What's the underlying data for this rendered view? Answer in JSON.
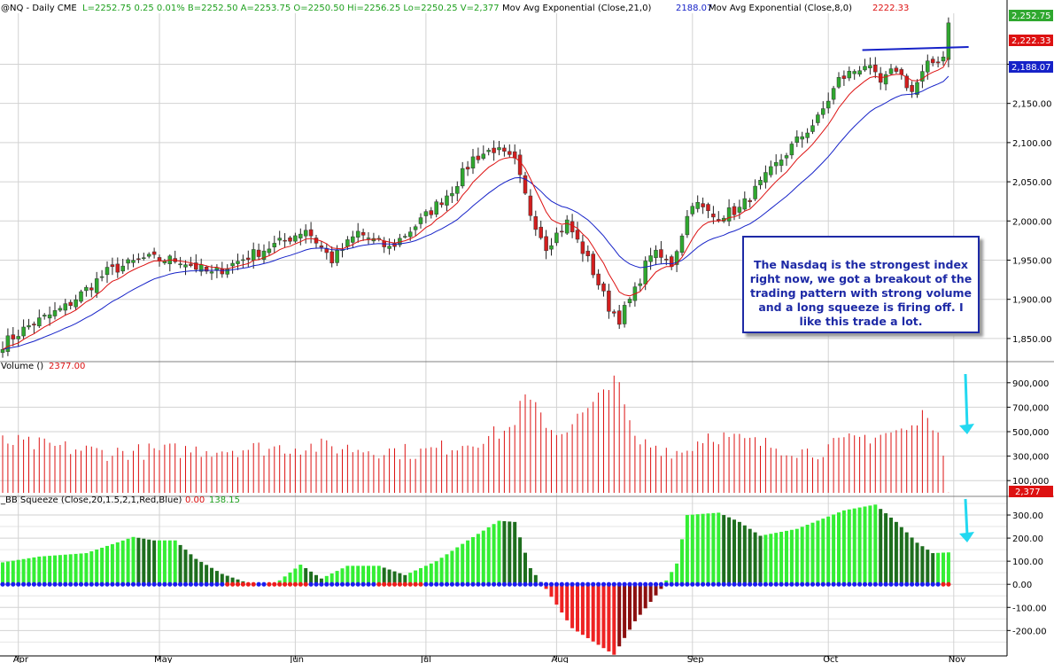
{
  "header": {
    "symbol": "@NQ - Daily  CME",
    "quote": "L=2252.75  0.25  0.01%  B=2252.50  A=2253.75  O=2250.50  Hi=2256.25  Lo=2250.25  V=2,377",
    "ema21_label": "Mov Avg Exponential (Close,21,0)",
    "ema21_value": "2188.07",
    "ema8_label": "Mov Avg Exponential (Close,8,0)",
    "ema8_value": "2222.33"
  },
  "last_price_tag": "2,252.75",
  "ema8_tag": "2,222.33",
  "ema21_tag": "2,188.07",
  "volume_header": {
    "label": "Volume ()",
    "value": "2377.00"
  },
  "volume_tag": "2,377",
  "squeeze_header": {
    "label": "_BB Squeeze (Close,20,1.5,2,1,Red,Blue)",
    "value1": "0.00",
    "value2": "138.15"
  },
  "annotation": "The Nasdaq is the strongest index right now, we got a breakout of the trading pattern with strong volume and a long squeeze is firing off. I like this trade a lot.",
  "colors": {
    "up": "#2fa82f",
    "down": "#d21e1e",
    "ema8": "#dd1111",
    "ema21": "#1622c8",
    "volume": "#dd1111",
    "sq_light": "#34ee34",
    "sq_dark": "#1e6e1e",
    "sq_red": "#ee2222",
    "sq_darkred": "#8c1010",
    "dot_blue": "#1c1cf0",
    "dot_red": "#ee1c1c",
    "arrow": "#22d8f0",
    "trendline": "#1622c8"
  },
  "chart_data": [
    {
      "type": "candlestick",
      "series": [
        {
          "name": "@NQ"
        }
      ],
      "y_ticks": [
        "2,200.00",
        "2,150.00",
        "2,100.00",
        "2,050.00",
        "2,000.00",
        "1,950.00",
        "1,900.00",
        "1,850.00"
      ],
      "y_tick_values": [
        2200,
        2150,
        2100,
        2050,
        2000,
        1950,
        1900,
        1850
      ],
      "ylim": [
        1825,
        2265
      ],
      "x_ticks": [
        "Apr",
        "May",
        "Jun",
        "Jul",
        "Aug",
        "Sep",
        "Oct",
        "Nov"
      ],
      "x_tick_index": [
        3,
        30,
        56,
        81,
        106,
        132,
        158,
        182
      ],
      "key_points": [
        {
          "i": 0,
          "close": 1843
        },
        {
          "i": 5,
          "close": 1866
        },
        {
          "i": 12,
          "close": 1890
        },
        {
          "i": 20,
          "close": 1935
        },
        {
          "i": 27,
          "close": 1952
        },
        {
          "i": 34,
          "close": 1950
        },
        {
          "i": 40,
          "close": 1932
        },
        {
          "i": 47,
          "close": 1955
        },
        {
          "i": 54,
          "close": 1975
        },
        {
          "i": 58,
          "close": 1990
        },
        {
          "i": 63,
          "close": 1950
        },
        {
          "i": 68,
          "close": 1985
        },
        {
          "i": 74,
          "close": 1965
        },
        {
          "i": 80,
          "close": 2000
        },
        {
          "i": 86,
          "close": 2040
        },
        {
          "i": 90,
          "close": 2080
        },
        {
          "i": 94,
          "close": 2092
        },
        {
          "i": 98,
          "close": 2075
        },
        {
          "i": 101,
          "close": 2010
        },
        {
          "i": 104,
          "close": 1968
        },
        {
          "i": 108,
          "close": 1998
        },
        {
          "i": 112,
          "close": 1950
        },
        {
          "i": 116,
          "close": 1890
        },
        {
          "i": 118,
          "close": 1875
        },
        {
          "i": 121,
          "close": 1910
        },
        {
          "i": 124,
          "close": 1960
        },
        {
          "i": 128,
          "close": 1945
        },
        {
          "i": 132,
          "close": 2025
        },
        {
          "i": 136,
          "close": 2005
        },
        {
          "i": 141,
          "close": 2015
        },
        {
          "i": 146,
          "close": 2055
        },
        {
          "i": 151,
          "close": 2095
        },
        {
          "i": 156,
          "close": 2130
        },
        {
          "i": 160,
          "close": 2180
        },
        {
          "i": 165,
          "close": 2200
        },
        {
          "i": 168,
          "close": 2175
        },
        {
          "i": 171,
          "close": 2195
        },
        {
          "i": 174,
          "close": 2165
        },
        {
          "i": 177,
          "close": 2198
        },
        {
          "i": 180,
          "close": 2210
        },
        {
          "i": 181,
          "close": 2252.75
        }
      ],
      "ema8_last": 2222.33,
      "ema21_last": 2188.07,
      "last": 2252.75,
      "trendline": {
        "from_i": 164,
        "from_y": 2218,
        "to_i": 184,
        "to_y": 2222
      }
    },
    {
      "type": "bar",
      "series": [
        {
          "name": "Volume ()"
        }
      ],
      "y_ticks": [
        "900,000",
        "700,000",
        "500,000",
        "300,000",
        "100,000"
      ],
      "y_tick_values": [
        900000,
        700000,
        500000,
        300000,
        100000
      ],
      "ylim": [
        0,
        1000000
      ],
      "key_points": [
        {
          "i": 0,
          "value": 420000
        },
        {
          "i": 20,
          "value": 330000
        },
        {
          "i": 45,
          "value": 360000
        },
        {
          "i": 60,
          "value": 380000
        },
        {
          "i": 80,
          "value": 330000
        },
        {
          "i": 90,
          "value": 420000
        },
        {
          "i": 97,
          "value": 520000
        },
        {
          "i": 100,
          "value": 780000
        },
        {
          "i": 106,
          "value": 480000
        },
        {
          "i": 113,
          "value": 700000
        },
        {
          "i": 117,
          "value": 980000
        },
        {
          "i": 121,
          "value": 420000
        },
        {
          "i": 130,
          "value": 330000
        },
        {
          "i": 135,
          "value": 480000
        },
        {
          "i": 145,
          "value": 400000
        },
        {
          "i": 155,
          "value": 330000
        },
        {
          "i": 164,
          "value": 450000
        },
        {
          "i": 174,
          "value": 520000
        },
        {
          "i": 177,
          "value": 680000
        },
        {
          "i": 179,
          "value": 470000
        },
        {
          "i": 181,
          "value": 2377
        }
      ],
      "last": 2377
    },
    {
      "type": "bar",
      "series": [
        {
          "name": "_BB Squeeze (Close,20,1.5,2,1,Red,Blue)"
        }
      ],
      "y_ticks": [
        "300.00",
        "200.00",
        "100.00",
        "0.00",
        "-100.00",
        "-200.00"
      ],
      "y_tick_values": [
        300,
        200,
        100,
        0,
        -100,
        -200
      ],
      "ylim": [
        -310,
        350
      ],
      "key_points": [
        {
          "i": 0,
          "value": 95
        },
        {
          "i": 7,
          "value": 120
        },
        {
          "i": 16,
          "value": 135
        },
        {
          "i": 25,
          "value": 205
        },
        {
          "i": 29,
          "value": 190
        },
        {
          "i": 33,
          "value": 190
        },
        {
          "i": 37,
          "value": 110
        },
        {
          "i": 42,
          "value": 45
        },
        {
          "i": 47,
          "value": 5
        },
        {
          "i": 52,
          "value": 0
        },
        {
          "i": 57,
          "value": 85
        },
        {
          "i": 61,
          "value": 25
        },
        {
          "i": 66,
          "value": 80
        },
        {
          "i": 72,
          "value": 80
        },
        {
          "i": 77,
          "value": 40
        },
        {
          "i": 83,
          "value": 100
        },
        {
          "i": 89,
          "value": 190
        },
        {
          "i": 95,
          "value": 275
        },
        {
          "i": 98,
          "value": 270
        },
        {
          "i": 101,
          "value": 70
        },
        {
          "i": 104,
          "value": -20
        },
        {
          "i": 109,
          "value": -190
        },
        {
          "i": 117,
          "value": -305
        },
        {
          "i": 121,
          "value": -160
        },
        {
          "i": 126,
          "value": -20
        },
        {
          "i": 129,
          "value": 90
        },
        {
          "i": 131,
          "value": 300
        },
        {
          "i": 137,
          "value": 310
        },
        {
          "i": 141,
          "value": 270
        },
        {
          "i": 145,
          "value": 210
        },
        {
          "i": 152,
          "value": 240
        },
        {
          "i": 161,
          "value": 320
        },
        {
          "i": 167,
          "value": 345
        },
        {
          "i": 171,
          "value": 270
        },
        {
          "i": 175,
          "value": 180
        },
        {
          "i": 178,
          "value": 135
        },
        {
          "i": 181,
          "value": 138.15
        }
      ],
      "red_dot_ranges": [
        [
          43,
          48
        ],
        [
          51,
          58
        ],
        [
          72,
          80
        ],
        [
          180,
          182
        ]
      ],
      "last": 138.15
    }
  ]
}
